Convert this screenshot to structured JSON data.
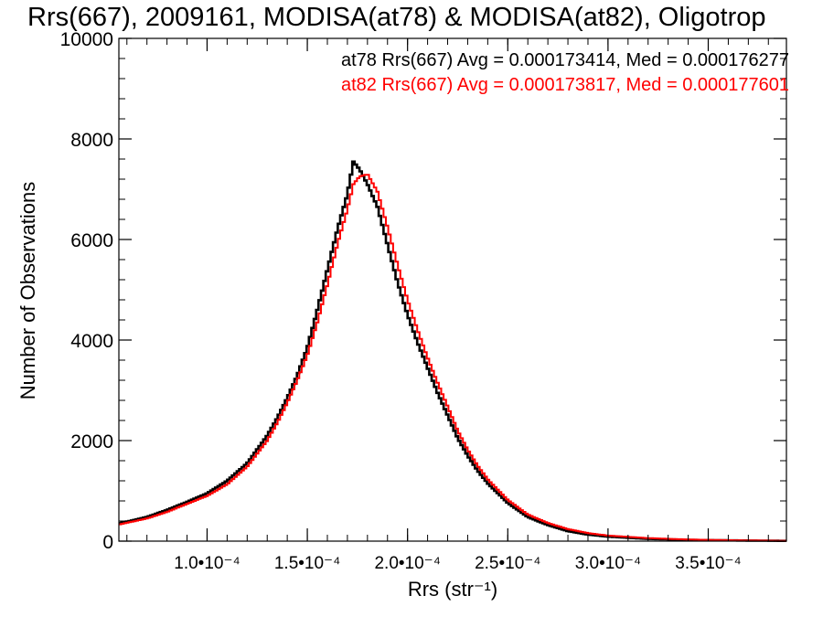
{
  "chart_data": {
    "type": "line",
    "title": "Rrs(667), 2009161, MODISA(at78) & MODISA(at82), Oligotrop",
    "xlabel": "Rrs (str⁻¹)",
    "ylabel": "Number of Observations",
    "xlim": [
      5.6e-05,
      0.000389
    ],
    "ylim": [
      0,
      10000
    ],
    "x_tick_labels": [
      "1.0•10⁻⁴",
      "1.5•10⁻⁴",
      "2.0•10⁻⁴",
      "2.5•10⁻⁴",
      "3.0•10⁻⁴",
      "3.5•10⁻⁴"
    ],
    "x_ticks": [
      0.0001,
      0.00015,
      0.0002,
      0.00025,
      0.0003,
      0.00035
    ],
    "y_ticks": [
      0,
      2000,
      4000,
      6000,
      8000,
      10000
    ],
    "y_tick_labels": [
      "0",
      "2000",
      "4000",
      "6000",
      "8000",
      "10000"
    ],
    "annotations": [
      {
        "text": "at78 Rrs(667) Avg = 0.000173414, Med = 0.000176277",
        "color": "#000000"
      },
      {
        "text": "at82 Rrs(667) Avg = 0.000173817, Med = 0.000177601",
        "color": "#ff0000"
      }
    ],
    "series": [
      {
        "color": "#000000",
        "x": [
          5.6e-05,
          7e-05,
          8e-05,
          9e-05,
          0.0001,
          0.00011,
          0.00012,
          0.00013,
          0.000135,
          0.00014,
          0.000145,
          0.00015,
          0.000155,
          0.00016,
          0.000165,
          0.00017,
          0.000173,
          0.000176,
          0.00018,
          0.000185,
          0.00019,
          0.000195,
          0.0002,
          0.000205,
          0.00021,
          0.000215,
          0.00022,
          0.000225,
          0.00023,
          0.000235,
          0.00024,
          0.00025,
          0.00026,
          0.00027,
          0.00028,
          0.00029,
          0.0003,
          0.00032,
          0.00034,
          0.00036,
          0.00038,
          0.000389
        ],
        "values": [
          350,
          480,
          620,
          780,
          950,
          1200,
          1550,
          2100,
          2450,
          2850,
          3300,
          3850,
          4600,
          5400,
          6200,
          6900,
          7550,
          7400,
          7100,
          6650,
          5900,
          5150,
          4500,
          3950,
          3450,
          2950,
          2500,
          2050,
          1700,
          1400,
          1150,
          760,
          480,
          320,
          200,
          130,
          90,
          45,
          25,
          15,
          8,
          5
        ]
      },
      {
        "color": "#ff0000",
        "x": [
          5.6e-05,
          7e-05,
          8e-05,
          9e-05,
          0.0001,
          0.00011,
          0.00012,
          0.00013,
          0.000135,
          0.00014,
          0.000145,
          0.00015,
          0.000155,
          0.00016,
          0.000165,
          0.00017,
          0.000173,
          0.000176,
          0.00018,
          0.000185,
          0.00019,
          0.000195,
          0.0002,
          0.000205,
          0.00021,
          0.000215,
          0.00022,
          0.000225,
          0.00023,
          0.000235,
          0.00024,
          0.00025,
          0.00026,
          0.00027,
          0.00028,
          0.00029,
          0.0003,
          0.00032,
          0.00034,
          0.00036,
          0.00038,
          0.000389
        ],
        "values": [
          330,
          450,
          580,
          740,
          900,
          1130,
          1480,
          2000,
          2350,
          2750,
          3200,
          3700,
          4350,
          5100,
          5900,
          6600,
          7100,
          7250,
          7300,
          6950,
          6250,
          5500,
          4800,
          4200,
          3650,
          3150,
          2680,
          2200,
          1820,
          1500,
          1230,
          820,
          530,
          360,
          240,
          160,
          110,
          60,
          32,
          18,
          10,
          6
        ]
      }
    ]
  }
}
